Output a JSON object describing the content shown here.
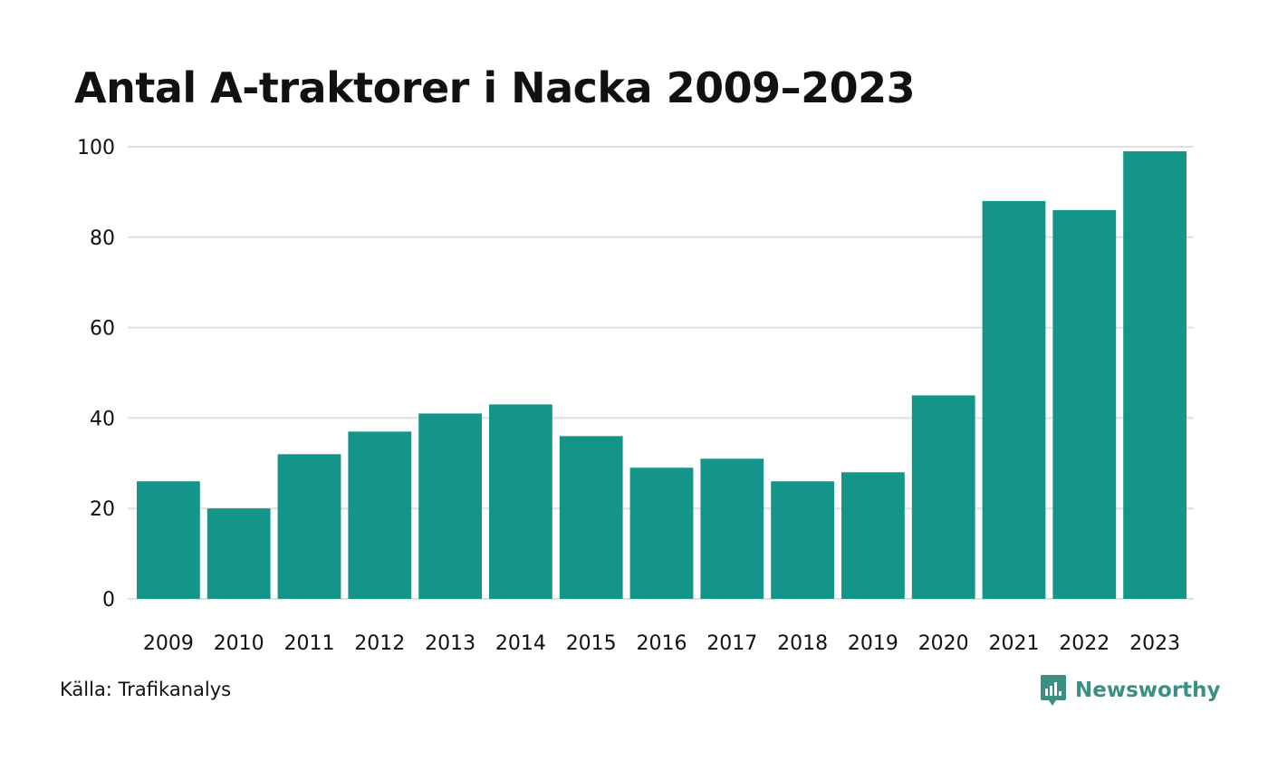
{
  "colors": {
    "bar": "#14958a",
    "grid": "#e0e0e0",
    "text": "#111111",
    "brand": "#3d8f83"
  },
  "icons": {
    "logo": "newsworthy-logo-icon"
  },
  "footer": {
    "source": "Källa: Trafikanalys",
    "brand": "Newsworthy"
  },
  "chart_data": {
    "type": "bar",
    "title": "Antal A-traktorer i Nacka 2009–2023",
    "xlabel": "",
    "ylabel": "",
    "categories": [
      "2009",
      "2010",
      "2011",
      "2012",
      "2013",
      "2014",
      "2015",
      "2016",
      "2017",
      "2018",
      "2019",
      "2020",
      "2021",
      "2022",
      "2023"
    ],
    "values": [
      26,
      20,
      32,
      37,
      41,
      43,
      36,
      29,
      31,
      26,
      28,
      45,
      88,
      86,
      99
    ],
    "ylim": [
      0,
      100
    ],
    "yticks": [
      0,
      20,
      40,
      60,
      80,
      100
    ],
    "grid": true,
    "legend": "none"
  }
}
